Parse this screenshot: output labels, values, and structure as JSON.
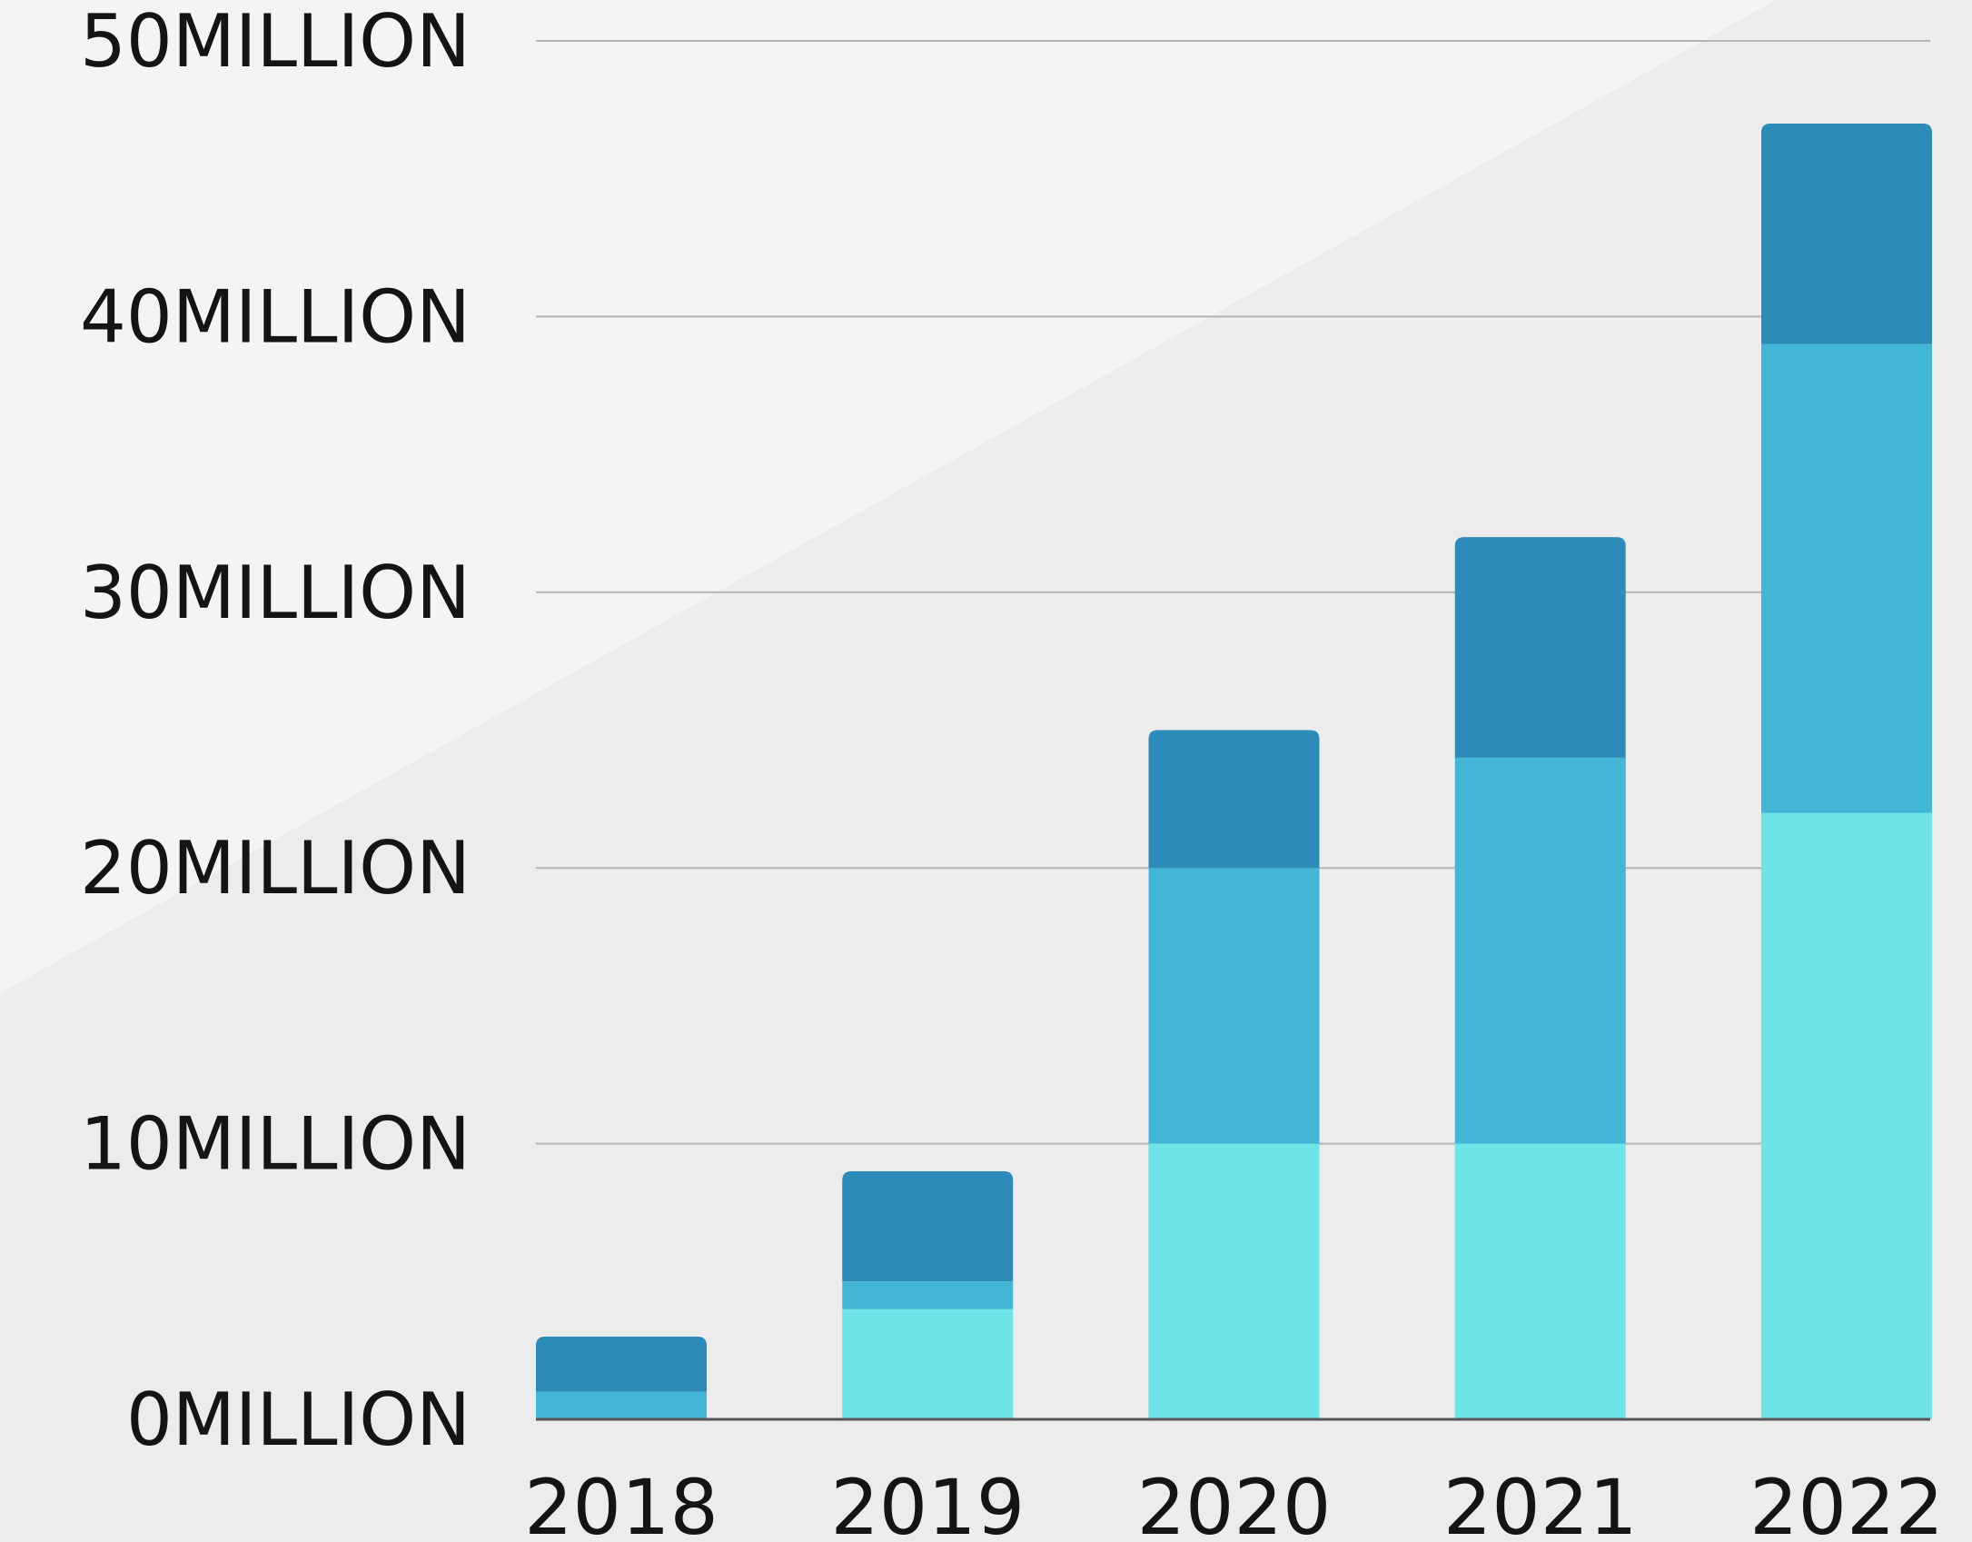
{
  "chart_data": {
    "type": "bar",
    "stacked": true,
    "categories": [
      "2018",
      "2019",
      "2020",
      "2021",
      "2022"
    ],
    "series": [
      {
        "values": [
          0,
          4,
          10,
          10,
          22
        ],
        "color": "#6ce4e8"
      },
      {
        "values": [
          1,
          1,
          10,
          14,
          17
        ],
        "color": "#42b6d6"
      },
      {
        "values": [
          2,
          4,
          5,
          8,
          8
        ],
        "color": "#2d8bb9"
      }
    ],
    "y_ticks": [
      {
        "value": 0,
        "label": "0MILLION"
      },
      {
        "value": 10,
        "label": "10MILLION"
      },
      {
        "value": 20,
        "label": "20MILLION"
      },
      {
        "value": 30,
        "label": "30MILLION"
      },
      {
        "value": 40,
        "label": "40MILLION"
      },
      {
        "value": 50,
        "label": "50MILLION"
      }
    ],
    "ylim": [
      0,
      50
    ],
    "grid": true,
    "legend": "none",
    "background_colors": {
      "light": "#f4f4f4",
      "dark": "#ececec"
    },
    "gridline_color": "#b4b4b4",
    "text_color": "#141414"
  }
}
